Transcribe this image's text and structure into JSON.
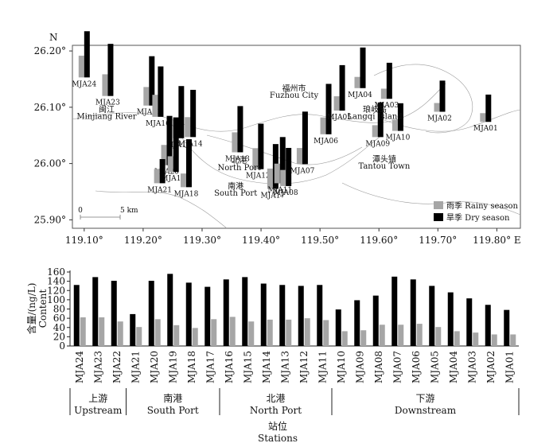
{
  "colors": {
    "rainy": "#a6a6a6",
    "dry": "#000000",
    "frame": "#555555",
    "river": "#9a9a9a"
  },
  "map": {
    "x_ticks": [
      {
        "value": 119.1,
        "label": "119.10°"
      },
      {
        "value": 119.2,
        "label": "119.20°"
      },
      {
        "value": 119.3,
        "label": "119.30°"
      },
      {
        "value": 119.4,
        "label": "119.40°"
      },
      {
        "value": 119.5,
        "label": "119.50°"
      },
      {
        "value": 119.6,
        "label": "119.60°"
      },
      {
        "value": 119.7,
        "label": "119.70°"
      },
      {
        "value": 119.8,
        "label": "119.80° E"
      }
    ],
    "y_ticks": [
      {
        "value": 26.2,
        "label": "26.20°"
      },
      {
        "value": 26.1,
        "label": "26.10°"
      },
      {
        "value": 26.0,
        "label": "26.00°"
      },
      {
        "value": 25.9,
        "label": "25.90°"
      }
    ],
    "north_label": "N",
    "legend": {
      "rainy": "雨季 Rainy season",
      "dry": "旱季 Dry season"
    },
    "scale_bar": {
      "start": "0",
      "end": "5 km"
    },
    "place_labels": [
      {
        "text": "福州市",
        "lon": 119.456,
        "lat": 26.129
      },
      {
        "text": "Fuzhou City",
        "lon": 119.456,
        "lat": 26.117
      },
      {
        "text": "闽江",
        "lon": 119.138,
        "lat": 26.091
      },
      {
        "text": "Minjiang River",
        "lon": 119.138,
        "lat": 26.079
      },
      {
        "text": "琅岐岛",
        "lon": 119.593,
        "lat": 26.091
      },
      {
        "text": "Langqi Island",
        "lon": 119.593,
        "lat": 26.079
      },
      {
        "text": "潭头镇",
        "lon": 119.609,
        "lat": 26.003
      },
      {
        "text": "Tantou Town",
        "lon": 119.609,
        "lat": 25.991
      },
      {
        "text": "北港",
        "lon": 119.363,
        "lat": 26.001
      },
      {
        "text": "North Port",
        "lon": 119.363,
        "lat": 25.988
      },
      {
        "text": "南港",
        "lon": 119.357,
        "lat": 25.955
      },
      {
        "text": "South Port",
        "lon": 119.357,
        "lat": 25.943
      }
    ]
  },
  "chart_data": {
    "type": "bar",
    "ylabel_cn": "含量/(ng/L)",
    "ylabel_en": "Content",
    "xlabel_cn": "站位",
    "xlabel_en": "Stations",
    "ylim": [
      0,
      160
    ],
    "yticks": [
      0,
      20,
      40,
      60,
      80,
      100,
      120,
      140,
      160
    ],
    "categories": [
      "MJA24",
      "MJA23",
      "MJA22",
      "MJA21",
      "MJA20",
      "MJA19",
      "MJA18",
      "MJA17",
      "MJA16",
      "MJA15",
      "MJA14",
      "MJA13",
      "MJA12",
      "MJA11",
      "MJA10",
      "MJA09",
      "MJA08",
      "MJA07",
      "MJA06",
      "MJA05",
      "MJA04",
      "MJA03",
      "MJA02",
      "MJA01"
    ],
    "series": [
      {
        "name": "雨季 Rainy season",
        "values": [
          62,
          62,
          53,
          41,
          58,
          45,
          39,
          58,
          63,
          53,
          57,
          57,
          60,
          56,
          32,
          34,
          46,
          46,
          48,
          41,
          32,
          29,
          25,
          25
        ]
      },
      {
        "name": "旱季 Dry season",
        "values": [
          132,
          149,
          141,
          69,
          141,
          156,
          137,
          128,
          144,
          149,
          135,
          132,
          130,
          132,
          79,
          99,
          109,
          150,
          144,
          130,
          116,
          103,
          89,
          78
        ]
      }
    ],
    "groups": [
      {
        "cn": "上游",
        "en": "Upstream",
        "from": 0,
        "to": 2
      },
      {
        "cn": "南港",
        "en": "South Port",
        "from": 3,
        "to": 7
      },
      {
        "cn": "北港",
        "en": "North Port",
        "from": 8,
        "to": 13
      },
      {
        "cn": "下游",
        "en": "Downstream",
        "from": 14,
        "to": 23
      }
    ],
    "stations": [
      {
        "id": "MJA24",
        "lon": 119.1,
        "lat": 26.153
      },
      {
        "id": "MJA23",
        "lon": 119.14,
        "lat": 26.12
      },
      {
        "id": "MJA22",
        "lon": 119.21,
        "lat": 26.103
      },
      {
        "id": "MJA16",
        "lon": 119.225,
        "lat": 26.083
      },
      {
        "id": "MJA15",
        "lon": 119.26,
        "lat": 26.045
      },
      {
        "id": "MJA14",
        "lon": 119.28,
        "lat": 26.047
      },
      {
        "id": "MJA20",
        "lon": 119.24,
        "lat": 25.997
      },
      {
        "id": "MJA19",
        "lon": 119.251,
        "lat": 25.985
      },
      {
        "id": "MJA21",
        "lon": 119.228,
        "lat": 25.965
      },
      {
        "id": "MJA18",
        "lon": 119.273,
        "lat": 25.958
      },
      {
        "id": "MJA13",
        "lon": 119.36,
        "lat": 26.02
      },
      {
        "id": "MJA12",
        "lon": 119.395,
        "lat": 25.99
      },
      {
        "id": "MJA17",
        "lon": 119.42,
        "lat": 25.955
      },
      {
        "id": "MJA11",
        "lon": 119.432,
        "lat": 25.965
      },
      {
        "id": "MJA08",
        "lon": 119.442,
        "lat": 25.96
      },
      {
        "id": "MJA07",
        "lon": 119.47,
        "lat": 25.999
      },
      {
        "id": "MJA06",
        "lon": 119.51,
        "lat": 26.052
      },
      {
        "id": "MJA05",
        "lon": 119.533,
        "lat": 26.094
      },
      {
        "id": "MJA04",
        "lon": 119.568,
        "lat": 26.134
      },
      {
        "id": "MJA09",
        "lon": 119.598,
        "lat": 26.047
      },
      {
        "id": "MJA10",
        "lon": 119.632,
        "lat": 26.058
      },
      {
        "id": "MJA03",
        "lon": 119.613,
        "lat": 26.115
      },
      {
        "id": "MJA02",
        "lon": 119.703,
        "lat": 26.092
      },
      {
        "id": "MJA01",
        "lon": 119.781,
        "lat": 26.074
      }
    ]
  }
}
